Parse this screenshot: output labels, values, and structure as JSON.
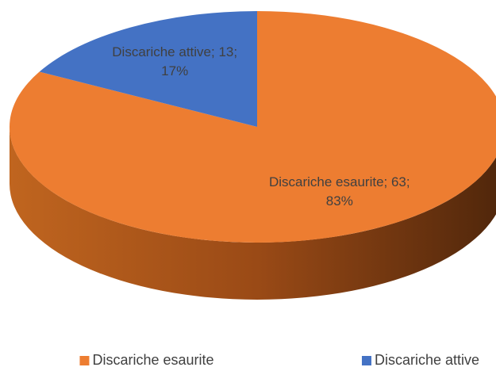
{
  "chart_data": {
    "type": "pie",
    "categories": [
      "Discariche esaurite",
      "Discariche attive"
    ],
    "values": [
      63,
      13
    ],
    "value_labels": [
      "Discariche esaurite; 63; 83%",
      "Discariche attive; 13; 17%"
    ],
    "colors": [
      "#ed7d31",
      "#4472c4"
    ],
    "legend": "bottom"
  }
}
